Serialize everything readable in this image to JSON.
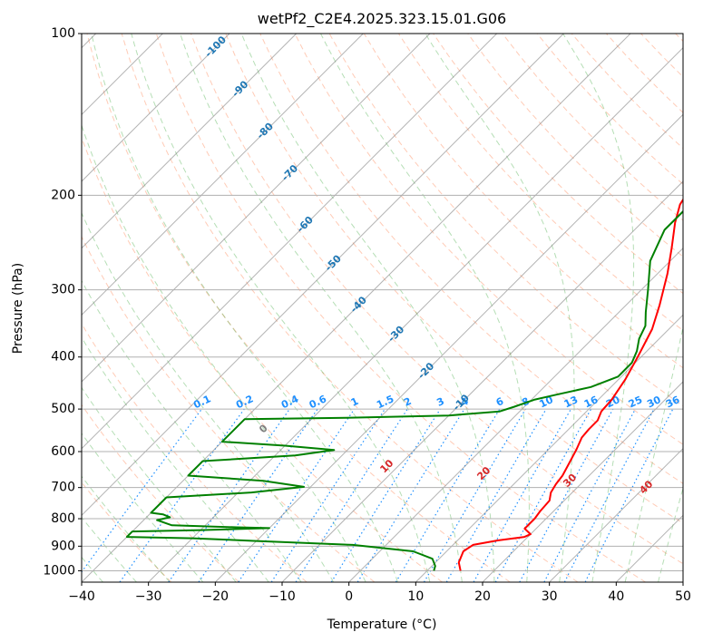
{
  "chart_data": {
    "type": "line",
    "title": "wetPf2_C2E4.2025.323.15.01.G06",
    "xlabel": "Temperature (°C)",
    "ylabel": "Pressure (hPa)",
    "xlim": [
      -40,
      50
    ],
    "ylim": [
      1050,
      100
    ],
    "y_scale": "log",
    "x_ticks": [
      -40,
      -30,
      -20,
      -10,
      0,
      10,
      20,
      30,
      40,
      50
    ],
    "y_ticks": [
      100,
      200,
      300,
      400,
      500,
      600,
      700,
      800,
      900,
      1000
    ],
    "grid": true,
    "isotherm_labels": [
      -100,
      -90,
      -80,
      -70,
      -60,
      -50,
      -40,
      -30,
      -20,
      -10
    ],
    "isotherm_label_pressures": [
      106,
      127,
      152,
      182,
      227,
      268,
      320,
      363,
      425,
      487
    ],
    "mixing_ratio_labels": [
      "0.1",
      "0.2",
      "0.4",
      "0.6",
      "1",
      "1.5",
      "2",
      "3",
      "4",
      "6",
      "8",
      "10",
      "13",
      "16",
      "20",
      "25",
      "30",
      "36"
    ],
    "moist_adiabat_labels": [
      "0",
      "10",
      "20",
      "30",
      "40"
    ],
    "series": [
      {
        "color": "#ff0000",
        "points": [
          [
            15.0,
            1000
          ],
          [
            13.5,
            965
          ],
          [
            12.5,
            920
          ],
          [
            13.0,
            895
          ],
          [
            16.0,
            878
          ],
          [
            19.5,
            865
          ],
          [
            20.0,
            855
          ],
          [
            18.3,
            835
          ],
          [
            18.3,
            800
          ],
          [
            18.0,
            775
          ],
          [
            17.8,
            740
          ],
          [
            16.8,
            715
          ],
          [
            16.3,
            690
          ],
          [
            16.0,
            665
          ],
          [
            15.0,
            625
          ],
          [
            14.2,
            595
          ],
          [
            13.2,
            565
          ],
          [
            13.0,
            545
          ],
          [
            13.0,
            525
          ],
          [
            12.2,
            505
          ],
          [
            12.0,
            480
          ],
          [
            11.0,
            440
          ],
          [
            9.5,
            400
          ],
          [
            7.5,
            355
          ],
          [
            5.0,
            320
          ],
          [
            1.5,
            280
          ],
          [
            -1.8,
            250
          ],
          [
            -5.0,
            225
          ],
          [
            -7.0,
            208
          ],
          [
            -7.8,
            195
          ],
          [
            -7.0,
            182
          ],
          [
            -5.0,
            170
          ],
          [
            -3.0,
            163
          ],
          [
            -2.0,
            155
          ],
          [
            -2.0,
            145
          ],
          [
            -2.0,
            130
          ],
          [
            -1.5,
            117
          ],
          [
            0.5,
            110
          ],
          [
            3.5,
            105
          ],
          [
            8.0,
            100
          ]
        ]
      },
      {
        "color": "#008000",
        "points": [
          [
            11.0,
            1000
          ],
          [
            10.5,
            980
          ],
          [
            9.0,
            950
          ],
          [
            5.0,
            920
          ],
          [
            -5.0,
            895
          ],
          [
            -20.0,
            880
          ],
          [
            -30.0,
            870
          ],
          [
            -40.0,
            865
          ],
          [
            -40.0,
            845
          ],
          [
            -30.0,
            840
          ],
          [
            -20.0,
            833
          ],
          [
            -25.0,
            830
          ],
          [
            -35.0,
            823
          ],
          [
            -38.0,
            805
          ],
          [
            -36.5,
            795
          ],
          [
            -38.0,
            785
          ],
          [
            -40.0,
            780
          ],
          [
            -40.0,
            730
          ],
          [
            -28.0,
            715
          ],
          [
            -21.0,
            698
          ],
          [
            -28.0,
            680
          ],
          [
            -40.0,
            665
          ],
          [
            -40.0,
            625
          ],
          [
            -27.0,
            610
          ],
          [
            -22.0,
            596
          ],
          [
            -30.0,
            585
          ],
          [
            -40.0,
            575
          ],
          [
            -40.0,
            522
          ],
          [
            -25.0,
            519
          ],
          [
            -10.0,
            514
          ],
          [
            -3.0,
            505
          ],
          [
            -1.5,
            495
          ],
          [
            0.5,
            480
          ],
          [
            3.0,
            470
          ],
          [
            7.0,
            455
          ],
          [
            9.5,
            435
          ],
          [
            9.5,
            410
          ],
          [
            8.5,
            390
          ],
          [
            7.0,
            370
          ],
          [
            6.0,
            350
          ],
          [
            4.0,
            330
          ],
          [
            1.0,
            300
          ],
          [
            -3.0,
            265
          ],
          [
            -5.5,
            232
          ],
          [
            -5.5,
            210
          ],
          [
            -5.0,
            190
          ],
          [
            -5.5,
            175
          ],
          [
            -7.0,
            162
          ],
          [
            -6.5,
            152
          ],
          [
            -4.5,
            142
          ],
          [
            -3.0,
            130
          ],
          [
            -1.5,
            120
          ],
          [
            0.5,
            110
          ],
          [
            1.0,
            100
          ]
        ]
      }
    ]
  }
}
